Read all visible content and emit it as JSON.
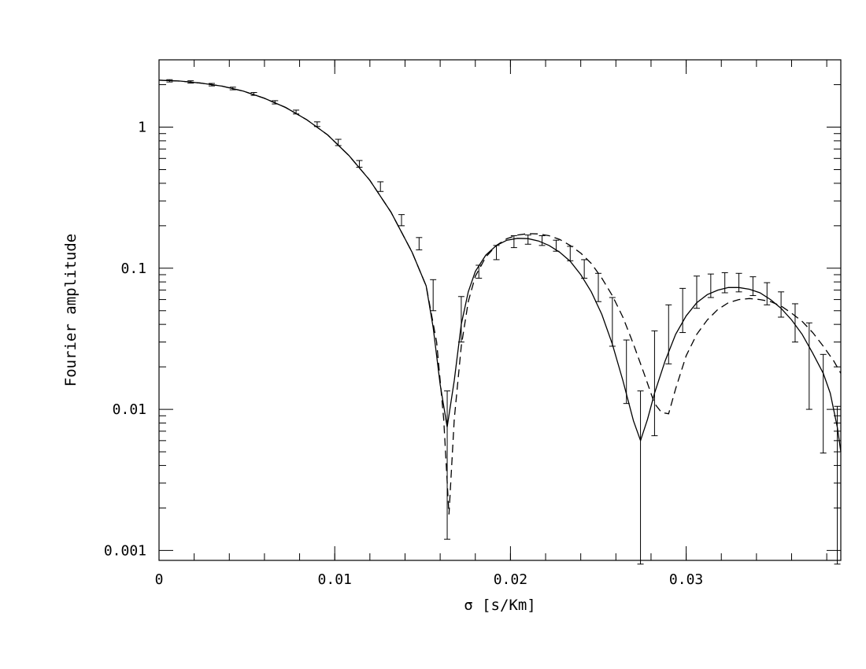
{
  "chart_data": {
    "type": "line",
    "title": "",
    "xlabel": "σ [s/Km]",
    "ylabel": "Fourier amplitude",
    "x_scale": "linear",
    "y_scale": "log",
    "xlim": [
      0,
      0.0388
    ],
    "ylim": [
      0.00085,
      3.0
    ],
    "x_ticks": [
      {
        "value": 0,
        "label": "0"
      },
      {
        "value": 0.01,
        "label": "0.01"
      },
      {
        "value": 0.02,
        "label": "0.02"
      },
      {
        "value": 0.03,
        "label": "0.03"
      }
    ],
    "y_ticks": [
      {
        "value": 0.001,
        "label": "0.001"
      },
      {
        "value": 0.01,
        "label": "0.01"
      },
      {
        "value": 0.1,
        "label": "0.1"
      },
      {
        "value": 1,
        "label": "1"
      }
    ],
    "grid": false,
    "legend": "none",
    "series": [
      {
        "style": "solid",
        "color": "#000000",
        "x": [
          0,
          0.0012,
          0.0024,
          0.0036,
          0.0048,
          0.006,
          0.0072,
          0.0084,
          0.0096,
          0.0108,
          0.012,
          0.0132,
          0.0144,
          0.0152,
          0.0156,
          0.016,
          0.0164,
          0.0168,
          0.0172,
          0.0176,
          0.018,
          0.0186,
          0.0192,
          0.0198,
          0.0204,
          0.021,
          0.0216,
          0.0222,
          0.0228,
          0.0234,
          0.024,
          0.0246,
          0.0252,
          0.0258,
          0.0264,
          0.027,
          0.0274,
          0.0278,
          0.0282,
          0.0288,
          0.0294,
          0.03,
          0.0306,
          0.0312,
          0.0318,
          0.0324,
          0.033,
          0.0336,
          0.0342,
          0.0348,
          0.0354,
          0.036,
          0.0366,
          0.0372,
          0.0378,
          0.0382,
          0.0386,
          0.0388
        ],
        "y": [
          2.15,
          2.12,
          2.05,
          1.95,
          1.8,
          1.6,
          1.38,
          1.13,
          0.88,
          0.63,
          0.42,
          0.25,
          0.13,
          0.075,
          0.038,
          0.015,
          0.0075,
          0.016,
          0.04,
          0.068,
          0.095,
          0.124,
          0.145,
          0.158,
          0.163,
          0.162,
          0.156,
          0.145,
          0.13,
          0.112,
          0.09,
          0.068,
          0.047,
          0.029,
          0.016,
          0.0083,
          0.006,
          0.0085,
          0.013,
          0.022,
          0.034,
          0.046,
          0.057,
          0.065,
          0.07,
          0.073,
          0.073,
          0.071,
          0.067,
          0.06,
          0.052,
          0.043,
          0.034,
          0.025,
          0.018,
          0.013,
          0.0075,
          0.005
        ]
      },
      {
        "style": "dashed",
        "color": "#000000",
        "x": [
          0,
          0.0012,
          0.0024,
          0.0036,
          0.0048,
          0.006,
          0.0072,
          0.0084,
          0.0096,
          0.0108,
          0.012,
          0.0132,
          0.0144,
          0.0152,
          0.0158,
          0.0162,
          0.0165,
          0.0168,
          0.0172,
          0.0176,
          0.018,
          0.0186,
          0.0192,
          0.0198,
          0.0204,
          0.021,
          0.0216,
          0.0222,
          0.0228,
          0.0234,
          0.024,
          0.0246,
          0.0252,
          0.0258,
          0.0264,
          0.027,
          0.0276,
          0.0282,
          0.0286,
          0.029,
          0.0294,
          0.03,
          0.0306,
          0.0312,
          0.0318,
          0.0324,
          0.033,
          0.0336,
          0.0342,
          0.0348,
          0.0354,
          0.036,
          0.0366,
          0.0372,
          0.0378,
          0.0384,
          0.0388
        ],
        "y": [
          2.15,
          2.12,
          2.05,
          1.95,
          1.8,
          1.6,
          1.38,
          1.13,
          0.88,
          0.63,
          0.42,
          0.25,
          0.13,
          0.075,
          0.03,
          0.0085,
          0.0018,
          0.0085,
          0.028,
          0.058,
          0.088,
          0.12,
          0.145,
          0.162,
          0.172,
          0.176,
          0.175,
          0.17,
          0.16,
          0.145,
          0.128,
          0.108,
          0.085,
          0.064,
          0.045,
          0.029,
          0.018,
          0.011,
          0.0095,
          0.0093,
          0.014,
          0.024,
          0.034,
          0.043,
          0.051,
          0.057,
          0.06,
          0.061,
          0.06,
          0.058,
          0.054,
          0.048,
          0.042,
          0.035,
          0.028,
          0.022,
          0.018
        ]
      }
    ],
    "error_bars": {
      "x": [
        0.0006,
        0.0018,
        0.003,
        0.0042,
        0.0054,
        0.0066,
        0.0078,
        0.009,
        0.0102,
        0.0114,
        0.0126,
        0.0138,
        0.0148,
        0.0156,
        0.0164,
        0.0172,
        0.0182,
        0.0192,
        0.0202,
        0.021,
        0.0218,
        0.0226,
        0.0234,
        0.0242,
        0.025,
        0.0258,
        0.0266,
        0.0274,
        0.0282,
        0.029,
        0.0298,
        0.0306,
        0.0314,
        0.0322,
        0.033,
        0.0338,
        0.0346,
        0.0354,
        0.0362,
        0.037,
        0.0378,
        0.0386
      ],
      "y": [
        2.13,
        2.09,
        2.0,
        1.88,
        1.72,
        1.5,
        1.28,
        1.05,
        0.78,
        0.55,
        0.38,
        0.22,
        0.15,
        0.065,
        0.006,
        0.045,
        0.095,
        0.13,
        0.155,
        0.16,
        0.157,
        0.145,
        0.128,
        0.1,
        0.075,
        0.045,
        0.02,
        0.0045,
        0.015,
        0.034,
        0.055,
        0.07,
        0.077,
        0.08,
        0.08,
        0.075,
        0.067,
        0.057,
        0.044,
        0.025,
        0.012,
        0.003
      ],
      "lower": [
        2.09,
        2.05,
        1.96,
        1.84,
        1.68,
        1.46,
        1.24,
        1.01,
        0.74,
        0.52,
        0.35,
        0.2,
        0.135,
        0.05,
        0.0012,
        0.03,
        0.085,
        0.115,
        0.14,
        0.148,
        0.145,
        0.132,
        0.113,
        0.085,
        0.058,
        0.028,
        0.011,
        0.0008,
        0.0065,
        0.021,
        0.035,
        0.052,
        0.062,
        0.067,
        0.068,
        0.064,
        0.055,
        0.045,
        0.03,
        0.01,
        0.0049,
        0.0008
      ],
      "upper": [
        2.17,
        2.13,
        2.04,
        1.92,
        1.76,
        1.54,
        1.32,
        1.09,
        0.82,
        0.58,
        0.41,
        0.24,
        0.165,
        0.083,
        0.0135,
        0.063,
        0.105,
        0.145,
        0.17,
        0.172,
        0.17,
        0.158,
        0.143,
        0.115,
        0.092,
        0.062,
        0.031,
        0.0135,
        0.036,
        0.055,
        0.072,
        0.088,
        0.091,
        0.093,
        0.092,
        0.087,
        0.079,
        0.068,
        0.056,
        0.041,
        0.0245,
        0.0105
      ]
    }
  }
}
